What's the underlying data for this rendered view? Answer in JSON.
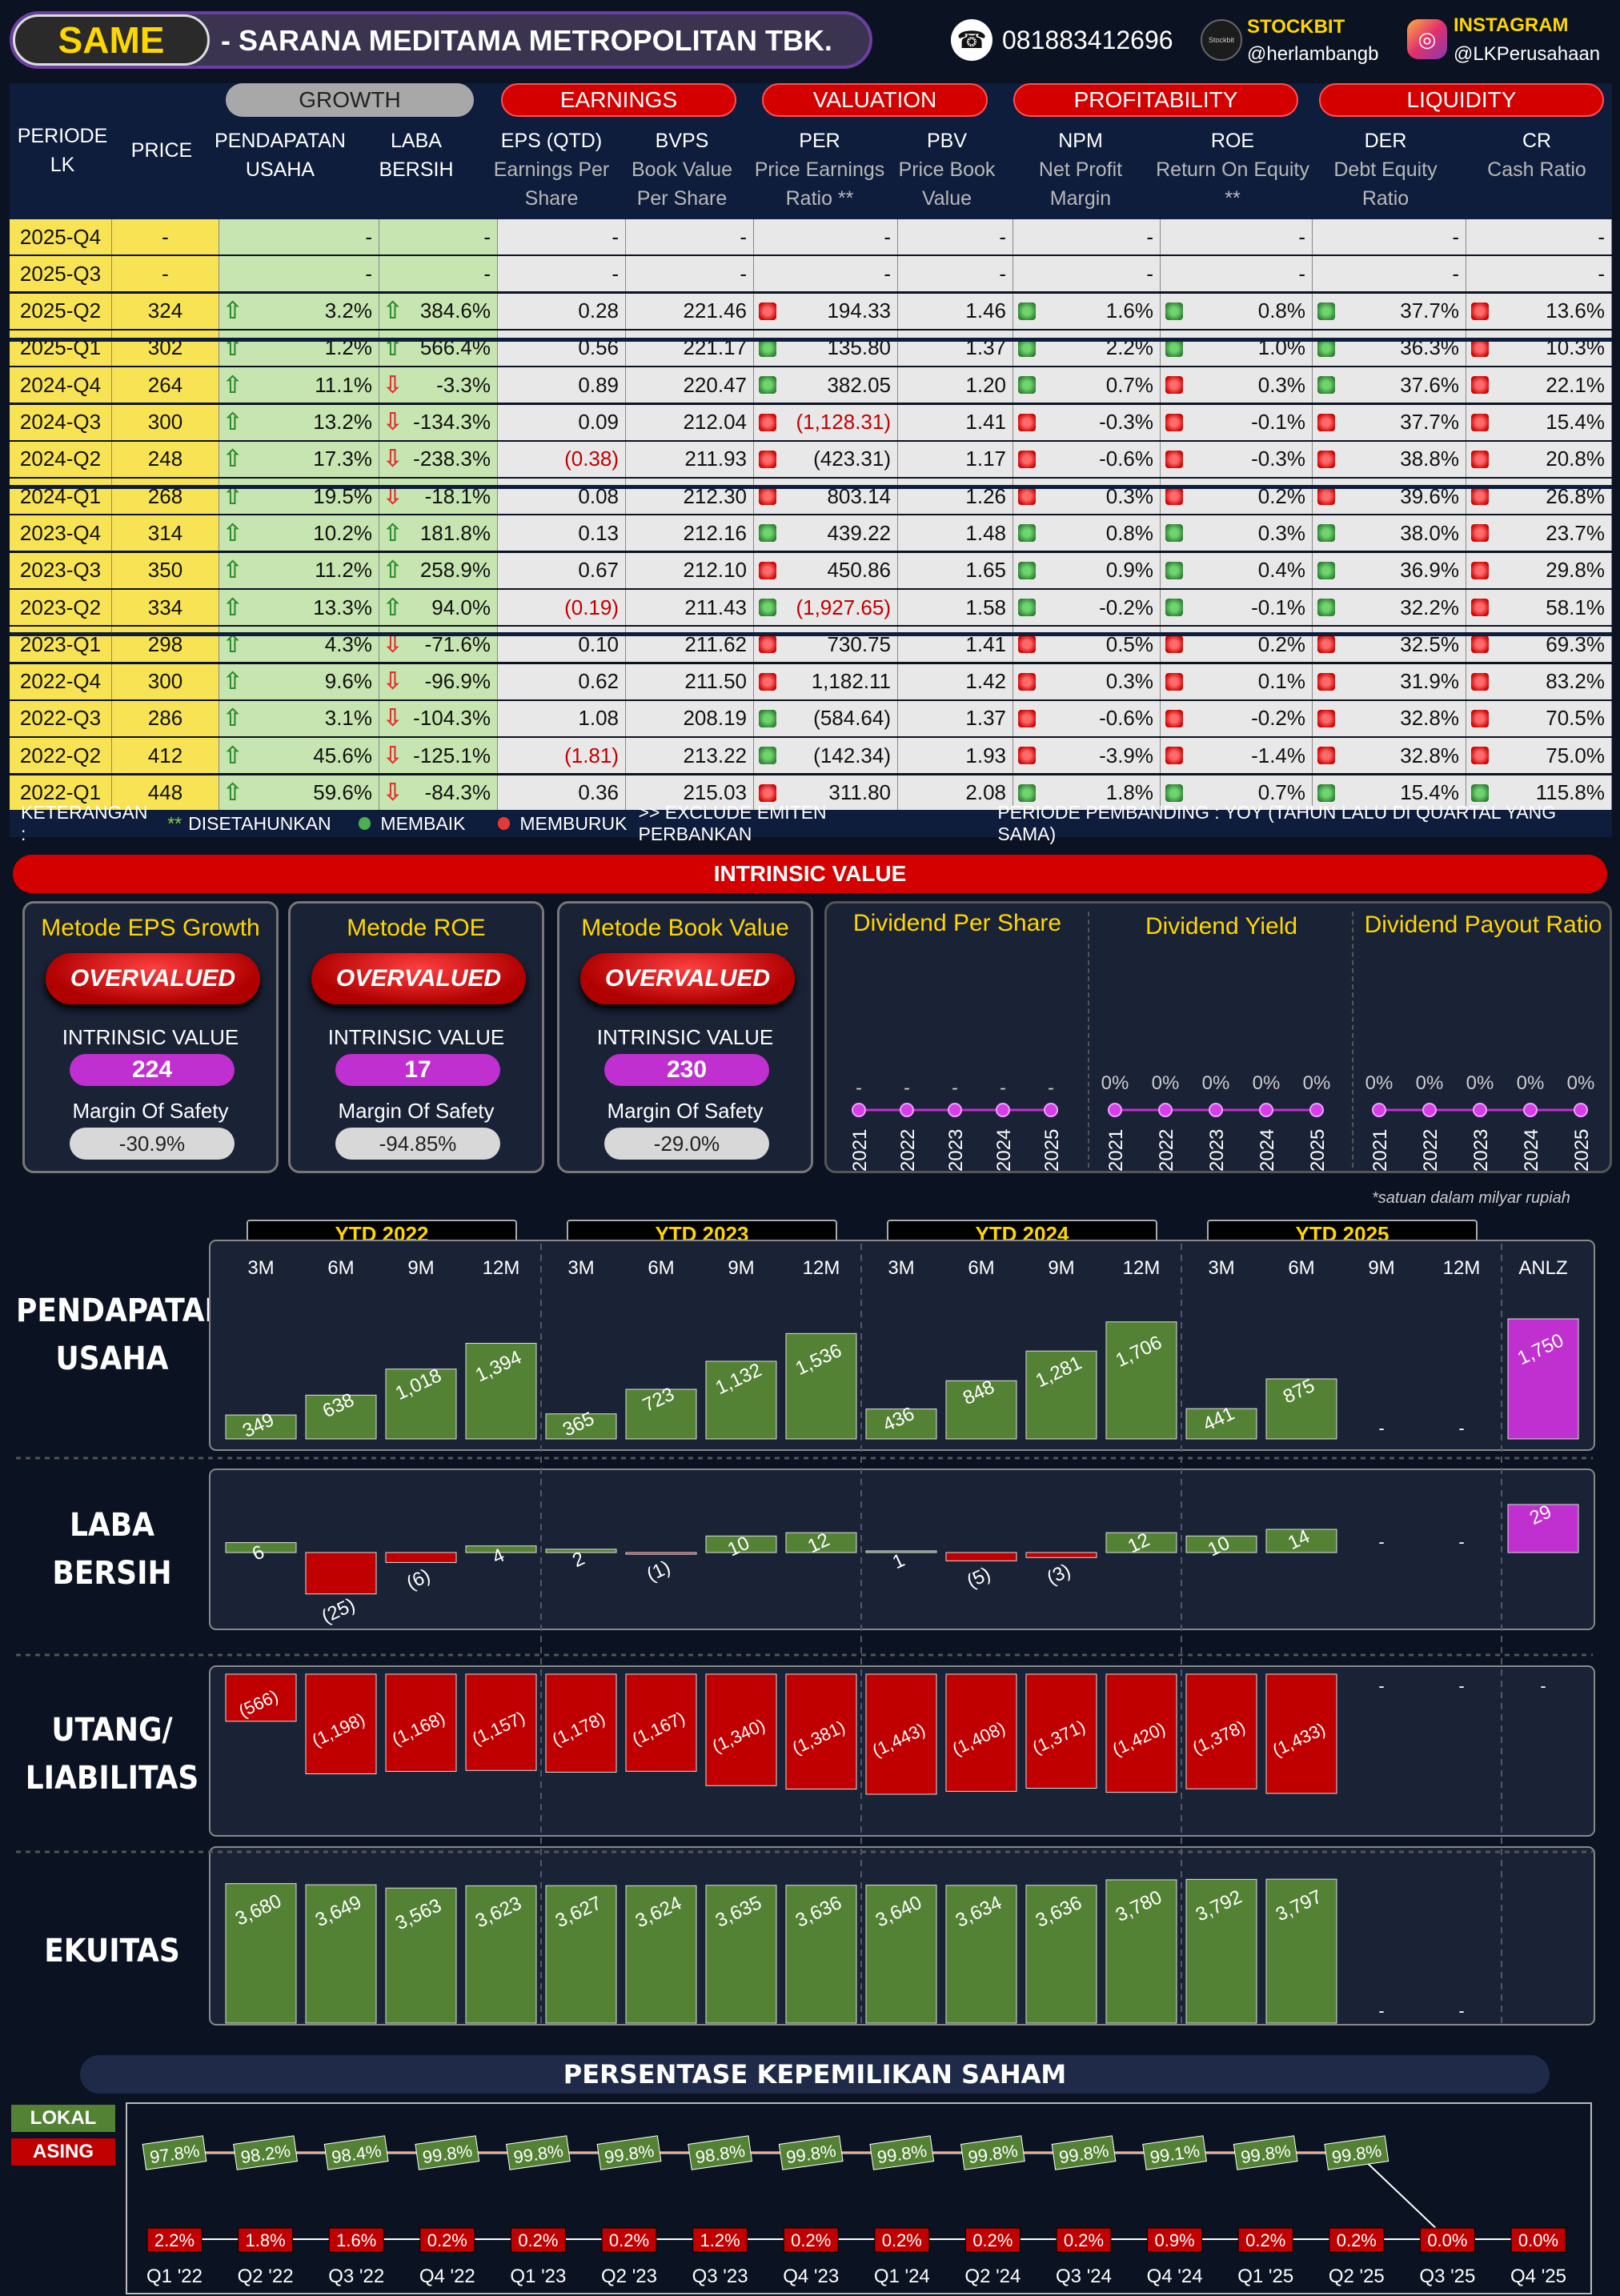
{
  "header": {
    "ticker": "SAME",
    "company": "-  SARANA MEDITAMA METROPOLITAN TBK.",
    "whatsapp": "081883412696",
    "stockbit_label": "STOCKBIT",
    "stockbit_handle": "@herlambangb",
    "instagram_label": "INSTAGRAM",
    "instagram_handle": "@LKPerusahaan",
    "stockbit_logo": "Stockbit",
    "icons": [
      "whatsapp-icon",
      "stockbit-icon",
      "instagram-icon"
    ]
  },
  "table": {
    "groups": {
      "growth": "GROWTH",
      "earnings": "EARNINGS",
      "valuation": "VALUATION",
      "profitability": "PROFITABILITY",
      "liquidity": "LIQUIDITY"
    },
    "columns": {
      "periode": "PERIODE LK",
      "price": "PRICE",
      "pendapatan": "PENDAPATAN USAHA",
      "laba": "LABA BERSIH",
      "eps": "EPS (QTD)",
      "eps_sub": "Earnings Per Share",
      "bvps": "BVPS",
      "bvps_sub": "Book Value Per Share",
      "per": "PER",
      "per_sub": "Price Earnings Ratio **",
      "pbv": "PBV",
      "pbv_sub": "Price Book Value",
      "npm": "NPM",
      "npm_sub": "Net Profit Margin",
      "roe": "ROE",
      "roe_sub": "Return On Equity **",
      "der": "DER",
      "der_sub": "Debt Equity Ratio",
      "cr": "CR",
      "cr_sub": "Cash Ratio"
    },
    "rows": [
      {
        "p": "2025-Q4",
        "price": "-",
        "rev": "-",
        "ni": "-",
        "eps": "-",
        "bvps": "-",
        "per": "-",
        "pbv": "-",
        "npm": "-",
        "roe": "-",
        "der": "-",
        "cr": "-",
        "blank": true
      },
      {
        "p": "2025-Q3",
        "price": "-",
        "rev": "-",
        "ni": "-",
        "eps": "-",
        "bvps": "-",
        "per": "-",
        "pbv": "-",
        "npm": "-",
        "roe": "-",
        "der": "-",
        "cr": "-",
        "blank": true
      },
      {
        "p": "2025-Q2",
        "price": "324",
        "rev": "3.2%",
        "revd": "up",
        "ni": "384.6%",
        "nid": "up",
        "eps": "0.28",
        "bvps": "221.46",
        "per": "194.33",
        "perd": "r",
        "pbv": "1.46",
        "pbvd": "g",
        "npm": "1.6%",
        "npmd": "g",
        "roe": "0.8%",
        "roed": "g",
        "der": "37.7%",
        "derd": "r",
        "cr": "13.6%"
      },
      {
        "p": "2025-Q1",
        "price": "302",
        "rev": "1.2%",
        "revd": "up",
        "ni": "566.4%",
        "nid": "up",
        "eps": "0.56",
        "bvps": "221.17",
        "per": "135.80",
        "perd": "g",
        "pbv": "1.37",
        "pbvd": "g",
        "npm": "2.2%",
        "npmd": "g",
        "roe": "1.0%",
        "roed": "g",
        "der": "36.3%",
        "derd": "r",
        "cr": "10.3%"
      },
      {
        "p": "2024-Q4",
        "price": "264",
        "rev": "11.1%",
        "revd": "up",
        "ni": "-3.3%",
        "nid": "dn",
        "eps": "0.89",
        "bvps": "220.47",
        "per": "382.05",
        "perd": "g",
        "pbv": "1.20",
        "pbvd": "g",
        "npm": "0.7%",
        "npmd": "r",
        "roe": "0.3%",
        "roed": "g",
        "der": "37.6%",
        "derd": "r",
        "cr": "22.1%"
      },
      {
        "p": "2024-Q3",
        "price": "300",
        "rev": "13.2%",
        "revd": "up",
        "ni": "-134.3%",
        "nid": "dn",
        "eps": "0.09",
        "bvps": "212.04",
        "per": "(1,128.31)",
        "perneg": true,
        "perd": "r",
        "pbv": "1.41",
        "pbvd": "r",
        "npm": "-0.3%",
        "npmd": "r",
        "roe": "-0.1%",
        "roed": "r",
        "der": "37.7%",
        "derd": "r",
        "cr": "15.4%"
      },
      {
        "p": "2024-Q2",
        "price": "248",
        "rev": "17.3%",
        "revd": "up",
        "ni": "-238.3%",
        "nid": "dn",
        "eps": "(0.38)",
        "epsneg": true,
        "bvps": "211.93",
        "per": "(423.31)",
        "perd": "r",
        "pbv": "1.17",
        "pbvd": "r",
        "npm": "-0.6%",
        "npmd": "r",
        "roe": "-0.3%",
        "roed": "r",
        "der": "38.8%",
        "derd": "r",
        "cr": "20.8%"
      },
      {
        "p": "2024-Q1",
        "price": "268",
        "rev": "19.5%",
        "revd": "up",
        "ni": "-18.1%",
        "nid": "dn",
        "eps": "0.08",
        "bvps": "212.30",
        "per": "803.14",
        "perd": "r",
        "pbv": "1.26",
        "pbvd": "r",
        "npm": "0.3%",
        "npmd": "r",
        "roe": "0.2%",
        "roed": "r",
        "der": "39.6%",
        "derd": "r",
        "cr": "26.8%"
      },
      {
        "p": "2023-Q4",
        "price": "314",
        "rev": "10.2%",
        "revd": "up",
        "ni": "181.8%",
        "nid": "up",
        "eps": "0.13",
        "bvps": "212.16",
        "per": "439.22",
        "perd": "g",
        "pbv": "1.48",
        "pbvd": "g",
        "npm": "0.8%",
        "npmd": "g",
        "roe": "0.3%",
        "roed": "g",
        "der": "38.0%",
        "derd": "r",
        "cr": "23.7%"
      },
      {
        "p": "2023-Q3",
        "price": "350",
        "rev": "11.2%",
        "revd": "up",
        "ni": "258.9%",
        "nid": "up",
        "eps": "0.67",
        "bvps": "212.10",
        "per": "450.86",
        "perd": "r",
        "pbv": "1.65",
        "pbvd": "g",
        "npm": "0.9%",
        "npmd": "g",
        "roe": "0.4%",
        "roed": "g",
        "der": "36.9%",
        "derd": "r",
        "cr": "29.8%"
      },
      {
        "p": "2023-Q2",
        "price": "334",
        "rev": "13.3%",
        "revd": "up",
        "ni": "94.0%",
        "nid": "up",
        "eps": "(0.19)",
        "epsneg": true,
        "bvps": "211.43",
        "per": "(1,927.65)",
        "perneg": true,
        "perd": "g",
        "pbv": "1.58",
        "pbvd": "g",
        "npm": "-0.2%",
        "npmd": "g",
        "roe": "-0.1%",
        "roed": "g",
        "der": "32.2%",
        "derd": "r",
        "cr": "58.1%"
      },
      {
        "p": "2023-Q1",
        "price": "298",
        "rev": "4.3%",
        "revd": "up",
        "ni": "-71.6%",
        "nid": "dn",
        "eps": "0.10",
        "bvps": "211.62",
        "per": "730.75",
        "perd": "r",
        "pbv": "1.41",
        "pbvd": "r",
        "npm": "0.5%",
        "npmd": "r",
        "roe": "0.2%",
        "roed": "r",
        "der": "32.5%",
        "derd": "r",
        "cr": "69.3%"
      },
      {
        "p": "2022-Q4",
        "price": "300",
        "rev": "9.6%",
        "revd": "up",
        "ni": "-96.9%",
        "nid": "dn",
        "eps": "0.62",
        "bvps": "211.50",
        "per": "1,182.11",
        "perd": "r",
        "pbv": "1.42",
        "pbvd": "r",
        "npm": "0.3%",
        "npmd": "r",
        "roe": "0.1%",
        "roed": "r",
        "der": "31.9%",
        "derd": "r",
        "cr": "83.2%"
      },
      {
        "p": "2022-Q3",
        "price": "286",
        "rev": "3.1%",
        "revd": "up",
        "ni": "-104.3%",
        "nid": "dn",
        "eps": "1.08",
        "bvps": "208.19",
        "per": "(584.64)",
        "perd": "g",
        "pbv": "1.37",
        "pbvd": "r",
        "npm": "-0.6%",
        "npmd": "r",
        "roe": "-0.2%",
        "roed": "r",
        "der": "32.8%",
        "derd": "r",
        "cr": "70.5%"
      },
      {
        "p": "2022-Q2",
        "price": "412",
        "rev": "45.6%",
        "revd": "up",
        "ni": "-125.1%",
        "nid": "dn",
        "eps": "(1.81)",
        "epsneg": true,
        "bvps": "213.22",
        "per": "(142.34)",
        "perd": "g",
        "pbv": "1.93",
        "pbvd": "r",
        "npm": "-3.9%",
        "npmd": "r",
        "roe": "-1.4%",
        "roed": "r",
        "der": "32.8%",
        "derd": "r",
        "cr": "75.0%"
      },
      {
        "p": "2022-Q1",
        "price": "448",
        "rev": "59.6%",
        "revd": "up",
        "ni": "-84.3%",
        "nid": "dn",
        "eps": "0.36",
        "bvps": "215.03",
        "per": "311.80",
        "perd": "r",
        "pbv": "2.08",
        "pbvd": "g",
        "npm": "1.8%",
        "npmd": "g",
        "roe": "0.7%",
        "roed": "g",
        "der": "15.4%",
        "derd": "g",
        "cr": "115.8%"
      }
    ]
  },
  "legend": {
    "keterangan": "KETERANGAN :",
    "stars": "**",
    "disetahunkan": "DISETAHUNKAN",
    "membaik": "MEMBAIK",
    "memburuk": "MEMBURUK",
    "exclude": ">> EXCLUDE EMITEN PERBANKAN",
    "pembanding": "PERIODE PEMBANDING : YOY (TAHUN LALU DI QUARTAL YANG SAMA)",
    "colors": {
      "membaik": "#2e7d32",
      "memburuk": "#c00000"
    }
  },
  "intrinsic": {
    "title": "INTRINSIC VALUE",
    "iv_label": "INTRINSIC VALUE",
    "mos_label": "Margin Of Safety",
    "methods": [
      {
        "name": "Metode EPS Growth",
        "status": "OVERVALUED",
        "iv": "224",
        "mos": "-30.9%"
      },
      {
        "name": "Metode ROE",
        "status": "OVERVALUED",
        "iv": "17",
        "mos": "-94.85%"
      },
      {
        "name": "Metode Book Value",
        "status": "OVERVALUED",
        "iv": "230",
        "mos": "-29.0%"
      }
    ]
  },
  "dividend": {
    "titles": [
      "Dividend Per Share",
      "Dividend Yield",
      "Dividend Payout Ratio"
    ],
    "years": [
      "2021",
      "2022",
      "2023",
      "2024",
      "2025"
    ],
    "dps": [
      "-",
      "-",
      "-",
      "-",
      "-"
    ],
    "yield": [
      "0%",
      "0%",
      "0%",
      "0%",
      "0%"
    ],
    "payout": [
      "0%",
      "0%",
      "0%",
      "0%",
      "0%"
    ]
  },
  "financials": {
    "note": "*satuan dalam milyar rupiah",
    "ytd_labels": [
      "YTD 2022",
      "YTD 2023",
      "YTD 2024",
      "YTD 2025"
    ],
    "months": [
      "3M",
      "6M",
      "9M",
      "12M"
    ],
    "anlz": "ANLZ",
    "labels": {
      "rev": "PENDAPATAN USAHA",
      "ni": "LABA BERSIH",
      "liab": "UTANG/ LIABILITAS",
      "eq": "EKUITAS"
    }
  },
  "chart_data": [
    {
      "type": "bar",
      "title": "PENDAPATAN USAHA",
      "categories": [
        "3M '22",
        "6M '22",
        "9M '22",
        "12M '22",
        "3M '23",
        "6M '23",
        "9M '23",
        "12M '23",
        "3M '24",
        "6M '24",
        "9M '24",
        "12M '24",
        "3M '25",
        "6M '25",
        "9M '25",
        "12M '25",
        "ANLZ"
      ],
      "values": [
        349,
        638,
        1018,
        1394,
        365,
        723,
        1132,
        1536,
        436,
        848,
        1281,
        1706,
        441,
        875,
        null,
        null,
        1750
      ],
      "labels": [
        "349",
        "638",
        "1,018",
        "1,394",
        "365",
        "723",
        "1,132",
        "1,536",
        "436",
        "848",
        "1,281",
        "1,706",
        "441",
        "875",
        "-",
        "-",
        "1,750"
      ]
    },
    {
      "type": "bar",
      "title": "LABA BERSIH",
      "categories": [
        "3M '22",
        "6M '22",
        "9M '22",
        "12M '22",
        "3M '23",
        "6M '23",
        "9M '23",
        "12M '23",
        "3M '24",
        "6M '24",
        "9M '24",
        "12M '24",
        "3M '25",
        "6M '25",
        "9M '25",
        "12M '25",
        "ANLZ"
      ],
      "values": [
        6,
        -25,
        -6,
        4,
        2,
        -1,
        10,
        12,
        1,
        -5,
        -3,
        12,
        10,
        14,
        null,
        null,
        29
      ],
      "labels": [
        "6",
        "(25)",
        "(6)",
        "4",
        "2",
        "(1)",
        "10",
        "12",
        "1",
        "(5)",
        "(3)",
        "12",
        "10",
        "14",
        "-",
        "-",
        "29"
      ]
    },
    {
      "type": "bar",
      "title": "UTANG/ LIABILITAS",
      "categories": [
        "3M '22",
        "6M '22",
        "9M '22",
        "12M '22",
        "3M '23",
        "6M '23",
        "9M '23",
        "12M '23",
        "3M '24",
        "6M '24",
        "9M '24",
        "12M '24",
        "3M '25",
        "6M '25",
        "9M '25",
        "12M '25",
        "ANLZ"
      ],
      "values": [
        -566,
        -1198,
        -1168,
        -1157,
        -1178,
        -1167,
        -1340,
        -1381,
        -1443,
        -1408,
        -1371,
        -1420,
        -1378,
        -1433,
        null,
        null,
        null
      ],
      "labels": [
        "(566)",
        "(1,198)",
        "(1,168)",
        "(1,157)",
        "(1,178)",
        "(1,167)",
        "(1,340)",
        "(1,381)",
        "(1,443)",
        "(1,408)",
        "(1,371)",
        "(1,420)",
        "(1,378)",
        "(1,433)",
        "-",
        "-",
        "-"
      ]
    },
    {
      "type": "bar",
      "title": "EKUITAS",
      "categories": [
        "3M '22",
        "6M '22",
        "9M '22",
        "12M '22",
        "3M '23",
        "6M '23",
        "9M '23",
        "12M '23",
        "3M '24",
        "6M '24",
        "9M '24",
        "12M '24",
        "3M '25",
        "6M '25",
        "9M '25",
        "12M '25"
      ],
      "values": [
        3680,
        3649,
        3563,
        3623,
        3627,
        3624,
        3635,
        3636,
        3640,
        3634,
        3636,
        3780,
        3792,
        3797,
        null,
        null
      ],
      "labels": [
        "3,680",
        "3,649",
        "3,563",
        "3,623",
        "3,627",
        "3,624",
        "3,635",
        "3,636",
        "3,640",
        "3,634",
        "3,636",
        "3,780",
        "3,792",
        "3,797",
        "-",
        "-"
      ]
    },
    {
      "type": "line",
      "title": "PERSENTASE KEPEMILIKAN SAHAM",
      "x": [
        "Q1 '22",
        "Q2 '22",
        "Q3 '22",
        "Q4 '22",
        "Q1 '23",
        "Q2 '23",
        "Q3 '23",
        "Q4 '23",
        "Q1 '24",
        "Q2 '24",
        "Q3 '24",
        "Q4 '24",
        "Q1 '25",
        "Q2 '25",
        "Q3 '25",
        "Q4 '25"
      ],
      "series": [
        {
          "name": "LOKAL",
          "values": [
            97.8,
            98.2,
            98.4,
            99.8,
            99.8,
            99.8,
            98.8,
            99.8,
            99.8,
            99.8,
            99.8,
            99.1,
            99.8,
            99.8,
            0.0,
            0.0
          ],
          "labels": [
            "97.8%",
            "98.2%",
            "98.4%",
            "99.8%",
            "99.8%",
            "99.8%",
            "98.8%",
            "99.8%",
            "99.8%",
            "99.8%",
            "99.8%",
            "99.1%",
            "99.8%",
            "99.8%",
            "",
            ""
          ],
          "color": "#548235"
        },
        {
          "name": "ASING",
          "values": [
            2.2,
            1.8,
            1.6,
            0.2,
            0.2,
            0.2,
            1.2,
            0.2,
            0.2,
            0.2,
            0.2,
            0.9,
            0.2,
            0.2,
            0.0,
            0.0
          ],
          "labels": [
            "2.2%",
            "1.8%",
            "1.6%",
            "0.2%",
            "0.2%",
            "0.2%",
            "1.2%",
            "0.2%",
            "0.2%",
            "0.2%",
            "0.2%",
            "0.9%",
            "0.2%",
            "0.2%",
            "0.0%",
            "0.0%"
          ],
          "color": "#c00000"
        }
      ]
    }
  ]
}
